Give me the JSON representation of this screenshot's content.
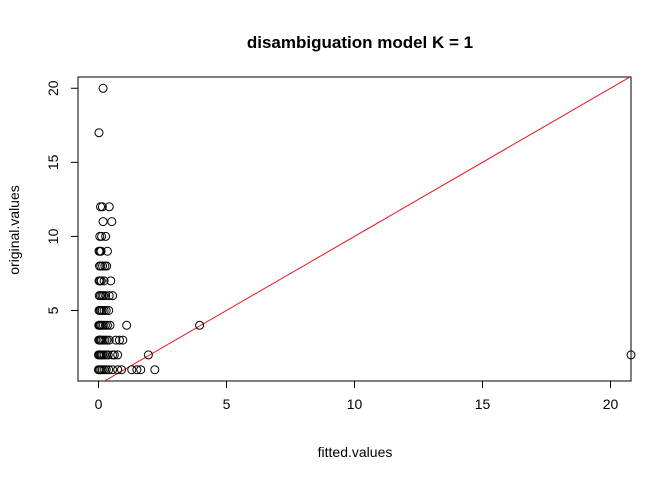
{
  "chart_data": {
    "type": "scatter",
    "title": "disambiguation model K = 1",
    "xlabel": "fitted.values",
    "ylabel": "original.values",
    "xlim": [
      -0.8,
      20.8
    ],
    "ylim": [
      0.24,
      20.76
    ],
    "xticks": [
      "0",
      "5",
      "10",
      "15",
      "20"
    ],
    "yticks": [
      "5",
      "10",
      "15",
      "20"
    ],
    "point_color": "#000000",
    "line_color": "#e8141c",
    "reference_line": {
      "intercept": 0,
      "slope": 1
    },
    "points": [
      [
        0.18,
        20
      ],
      [
        0.02,
        17
      ],
      [
        0.08,
        12
      ],
      [
        0.15,
        12
      ],
      [
        0.42,
        12
      ],
      [
        0.18,
        11
      ],
      [
        0.52,
        11
      ],
      [
        0.05,
        10
      ],
      [
        0.12,
        10
      ],
      [
        0.28,
        10
      ],
      [
        0.02,
        9
      ],
      [
        0.06,
        9
      ],
      [
        0.1,
        9
      ],
      [
        0.35,
        9
      ],
      [
        0.04,
        8
      ],
      [
        0.09,
        8
      ],
      [
        0.16,
        8
      ],
      [
        0.25,
        8
      ],
      [
        0.32,
        8
      ],
      [
        0.02,
        7
      ],
      [
        0.06,
        7
      ],
      [
        0.11,
        7
      ],
      [
        0.22,
        7
      ],
      [
        0.48,
        7
      ],
      [
        0.03,
        6
      ],
      [
        0.08,
        6
      ],
      [
        0.14,
        6
      ],
      [
        0.2,
        6
      ],
      [
        0.28,
        6
      ],
      [
        0.42,
        6
      ],
      [
        0.55,
        6
      ],
      [
        0.02,
        5
      ],
      [
        0.06,
        5
      ],
      [
        0.1,
        5
      ],
      [
        0.15,
        5
      ],
      [
        0.22,
        5
      ],
      [
        0.3,
        5
      ],
      [
        0.4,
        5
      ],
      [
        0.01,
        4
      ],
      [
        0.04,
        4
      ],
      [
        0.08,
        4
      ],
      [
        0.13,
        4
      ],
      [
        0.19,
        4
      ],
      [
        0.27,
        4
      ],
      [
        0.35,
        4
      ],
      [
        0.45,
        4
      ],
      [
        1.1,
        4
      ],
      [
        3.95,
        4
      ],
      [
        0.01,
        3
      ],
      [
        0.04,
        3
      ],
      [
        0.08,
        3
      ],
      [
        0.12,
        3
      ],
      [
        0.18,
        3
      ],
      [
        0.25,
        3
      ],
      [
        0.33,
        3
      ],
      [
        0.42,
        3
      ],
      [
        0.68,
        3
      ],
      [
        0.82,
        3
      ],
      [
        0.95,
        3
      ],
      [
        0.0,
        2
      ],
      [
        0.03,
        2
      ],
      [
        0.07,
        2
      ],
      [
        0.11,
        2
      ],
      [
        0.16,
        2
      ],
      [
        0.22,
        2
      ],
      [
        0.3,
        2
      ],
      [
        0.38,
        2
      ],
      [
        0.55,
        2
      ],
      [
        0.62,
        2
      ],
      [
        0.75,
        2
      ],
      [
        1.95,
        2
      ],
      [
        20.8,
        2
      ],
      [
        0.0,
        1
      ],
      [
        0.04,
        1
      ],
      [
        0.09,
        1
      ],
      [
        0.15,
        1
      ],
      [
        0.22,
        1
      ],
      [
        0.3,
        1
      ],
      [
        0.4,
        1
      ],
      [
        0.55,
        1
      ],
      [
        0.75,
        1
      ],
      [
        0.9,
        1
      ],
      [
        1.3,
        1
      ],
      [
        1.5,
        1
      ],
      [
        1.65,
        1
      ],
      [
        2.2,
        1
      ]
    ]
  }
}
